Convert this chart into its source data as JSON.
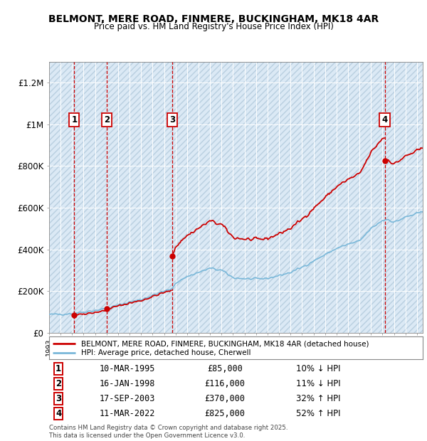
{
  "title": "BELMONT, MERE ROAD, FINMERE, BUCKINGHAM, MK18 4AR",
  "subtitle": "Price paid vs. HM Land Registry's House Price Index (HPI)",
  "ylim": [
    0,
    1300000
  ],
  "yticks": [
    0,
    200000,
    400000,
    600000,
    800000,
    1000000,
    1200000
  ],
  "ytick_labels": [
    "£0",
    "£200K",
    "£400K",
    "£600K",
    "£800K",
    "£1M",
    "£1.2M"
  ],
  "sale_dates_num": [
    1995.19,
    1998.04,
    2003.71,
    2022.19
  ],
  "sale_prices": [
    85000,
    116000,
    370000,
    825000
  ],
  "sale_labels": [
    "1",
    "2",
    "3",
    "4"
  ],
  "hpi_color": "#7ab8d9",
  "sale_color": "#cc0000",
  "background_color": "#dbe9f5",
  "legend_house_label": "BELMONT, MERE ROAD, FINMERE, BUCKINGHAM, MK18 4AR (detached house)",
  "legend_hpi_label": "HPI: Average price, detached house, Cherwell",
  "footer": "Contains HM Land Registry data © Crown copyright and database right 2025.\nThis data is licensed under the Open Government Licence v3.0.",
  "table_data": [
    [
      "1",
      "10-MAR-1995",
      "£85,000",
      "10% ↓ HPI"
    ],
    [
      "2",
      "16-JAN-1998",
      "£116,000",
      "11% ↓ HPI"
    ],
    [
      "3",
      "17-SEP-2003",
      "£370,000",
      "32% ↑ HPI"
    ],
    [
      "4",
      "11-MAR-2022",
      "£825,000",
      "52% ↑ HPI"
    ]
  ],
  "xmin": 1993,
  "xmax": 2025.5
}
